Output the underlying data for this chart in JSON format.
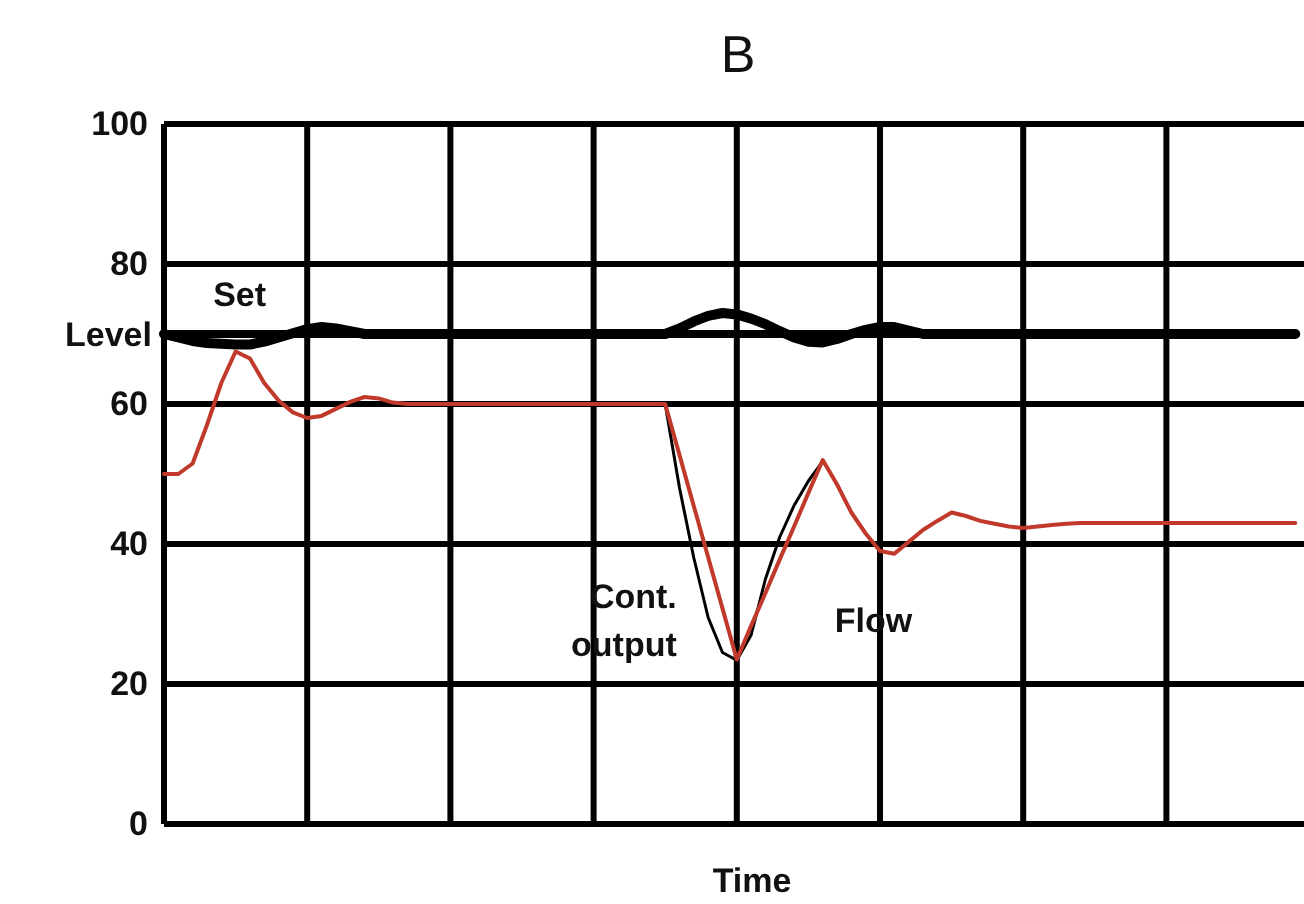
{
  "chart_data": {
    "type": "line",
    "title": "B",
    "xlabel": "Time",
    "categories": [
      null,
      null,
      null,
      null,
      null,
      null,
      null,
      null,
      null,
      null,
      null,
      null,
      null,
      null,
      null,
      null,
      null,
      null,
      null,
      null,
      null,
      null,
      null,
      null,
      null,
      null,
      null,
      null,
      null,
      null,
      null,
      null,
      null,
      null,
      null,
      null,
      null,
      null,
      null,
      null,
      null,
      null,
      null,
      null,
      null,
      null,
      null,
      null,
      null,
      null,
      null,
      null,
      null,
      null,
      null,
      null,
      null,
      null,
      null,
      null,
      null,
      null,
      null,
      null,
      null,
      null,
      null,
      null,
      null,
      null,
      null,
      null,
      null,
      null,
      null,
      null,
      null,
      null,
      null,
      null
    ],
    "ylim": [
      0,
      100
    ],
    "yticks": [
      0,
      20,
      40,
      60,
      80,
      100
    ],
    "grid": true,
    "series": [
      {
        "name": "Set",
        "color": "#000000",
        "values": [
          70,
          70,
          70,
          70,
          70,
          70,
          70,
          70,
          70,
          70,
          70,
          70,
          70,
          70,
          70,
          70,
          70,
          70,
          70,
          70,
          70,
          70,
          70,
          70,
          70,
          70,
          70,
          70,
          70,
          70,
          70,
          70,
          70,
          70,
          70,
          70,
          70,
          70,
          70,
          70,
          70,
          70,
          70,
          70,
          70,
          70,
          70,
          70,
          70,
          70,
          70,
          70,
          70,
          70,
          70,
          70,
          70,
          70,
          70,
          70,
          70,
          70,
          70,
          70,
          70,
          70,
          70,
          70,
          70,
          70,
          70,
          70,
          70,
          70,
          70,
          70,
          70,
          70,
          70,
          70
        ]
      },
      {
        "name": "Level",
        "color": "#000000",
        "values": [
          70,
          69.5,
          69,
          68.7,
          68.6,
          68.5,
          68.5,
          68.9,
          69.5,
          70.1,
          70.7,
          71,
          70.8,
          70.4,
          70,
          70,
          70,
          70,
          70,
          70,
          70,
          70,
          70,
          70,
          70,
          70,
          70,
          70,
          70,
          70,
          70,
          70,
          70,
          70,
          70,
          70,
          70.8,
          71.8,
          72.6,
          73,
          72.8,
          72.2,
          71.4,
          70.4,
          69.5,
          68.9,
          68.8,
          69.3,
          70,
          70.6,
          71,
          71,
          70.5,
          70,
          70,
          70,
          70,
          70,
          70,
          70,
          70,
          70,
          70,
          70,
          70,
          70,
          70,
          70,
          70,
          70,
          70,
          70,
          70,
          70,
          70,
          70,
          70,
          70,
          70,
          70
        ]
      },
      {
        "name": "Cont.\noutput",
        "color": "#000000",
        "values": [
          null,
          null,
          null,
          null,
          null,
          null,
          null,
          null,
          null,
          null,
          null,
          null,
          null,
          null,
          null,
          null,
          null,
          null,
          null,
          null,
          null,
          null,
          null,
          null,
          null,
          null,
          null,
          null,
          null,
          null,
          null,
          null,
          null,
          null,
          null,
          60,
          48,
          38,
          29.5,
          24.5,
          23.4,
          27,
          35,
          41,
          45.5,
          49,
          51.8,
          null,
          null,
          null,
          null,
          null,
          null,
          null,
          null,
          null,
          null,
          null,
          null,
          null,
          null,
          null,
          null,
          null,
          null,
          null,
          null,
          null,
          null,
          null,
          null,
          null,
          null,
          null,
          null,
          null,
          null,
          null,
          null,
          null
        ]
      },
      {
        "name": "Flow",
        "color": "#c0392b",
        "values": [
          50,
          50,
          51.5,
          57,
          63,
          67.5,
          66.5,
          63,
          60.5,
          58.8,
          58,
          58.3,
          59.3,
          60.3,
          61,
          60.8,
          60.2,
          60,
          60,
          60,
          60,
          60,
          60,
          60,
          60,
          60,
          60,
          60,
          60,
          60,
          60,
          60,
          60,
          60,
          60,
          60,
          52.7,
          45.4,
          38.1,
          30.8,
          23.5,
          28.3,
          33,
          37.8,
          42.5,
          47.3,
          52,
          48.5,
          44.5,
          41.5,
          39,
          38.6,
          40.3,
          42,
          43.3,
          44.5,
          44,
          43.3,
          42.9,
          42.5,
          42.3,
          42.5,
          42.7,
          42.9,
          43,
          43,
          43,
          43,
          43,
          43,
          43,
          43,
          43,
          43,
          43,
          43,
          43,
          43,
          43,
          43
        ]
      }
    ]
  }
}
